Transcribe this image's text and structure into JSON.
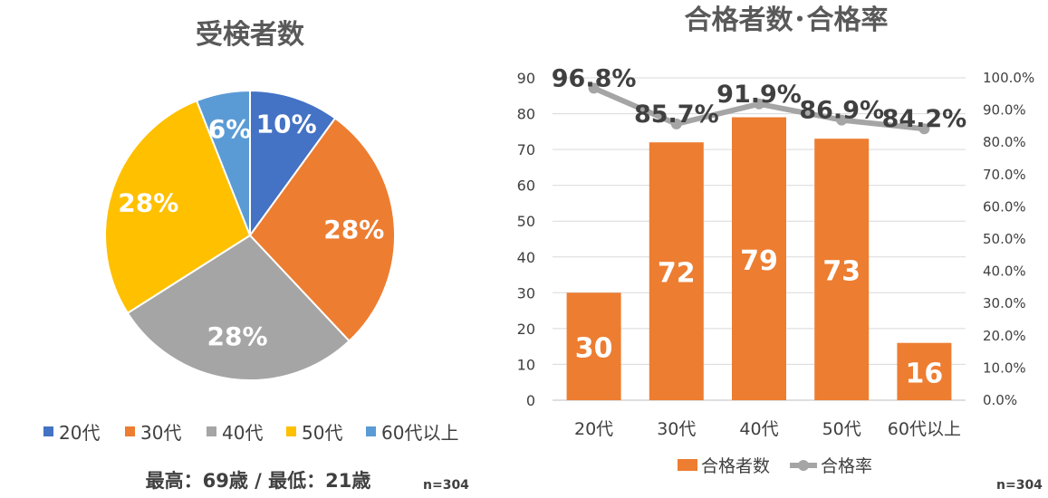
{
  "chart_data": [
    {
      "type": "pie",
      "title": "受検者数",
      "categories": [
        "20代",
        "30代",
        "40代",
        "50代",
        "60代以上"
      ],
      "values": [
        10,
        28,
        28,
        28,
        6
      ],
      "value_labels": [
        "10%",
        "28%",
        "28%",
        "28%",
        "6%"
      ],
      "colors": [
        "#4472C4",
        "#ED7D31",
        "#A5A5A5",
        "#FFC000",
        "#5B9BD5"
      ],
      "legend_position": "bottom",
      "footnote": "最高：69歳 / 最低：21歳",
      "n_label": "n=304"
    },
    {
      "type": "bar+line",
      "title": "合格者数･合格率",
      "categories": [
        "20代",
        "30代",
        "40代",
        "50代",
        "60代以上"
      ],
      "series": [
        {
          "name": "合格者数",
          "type": "bar",
          "axis": "left",
          "values": [
            30,
            72,
            79,
            73,
            16
          ],
          "labels": [
            "30",
            "72",
            "79",
            "73",
            "16"
          ],
          "color": "#ED7D31"
        },
        {
          "name": "合格率",
          "type": "line",
          "axis": "right",
          "values": [
            96.8,
            85.7,
            91.9,
            86.9,
            84.2
          ],
          "labels": [
            "96.8%",
            "85.7%",
            "91.9%",
            "86.9%",
            "84.2%"
          ],
          "color": "#A5A5A5"
        }
      ],
      "ylim": [
        0,
        90
      ],
      "yticks": [
        "0",
        "10",
        "20",
        "30",
        "40",
        "50",
        "60",
        "70",
        "80",
        "90"
      ],
      "y2lim": [
        0,
        100
      ],
      "y2ticks": [
        "0.0%",
        "10.0%",
        "20.0%",
        "30.0%",
        "40.0%",
        "50.0%",
        "60.0%",
        "70.0%",
        "80.0%",
        "90.0%",
        "100.0%"
      ],
      "grid": true,
      "legend_position": "bottom",
      "n_label": "n=304"
    }
  ]
}
